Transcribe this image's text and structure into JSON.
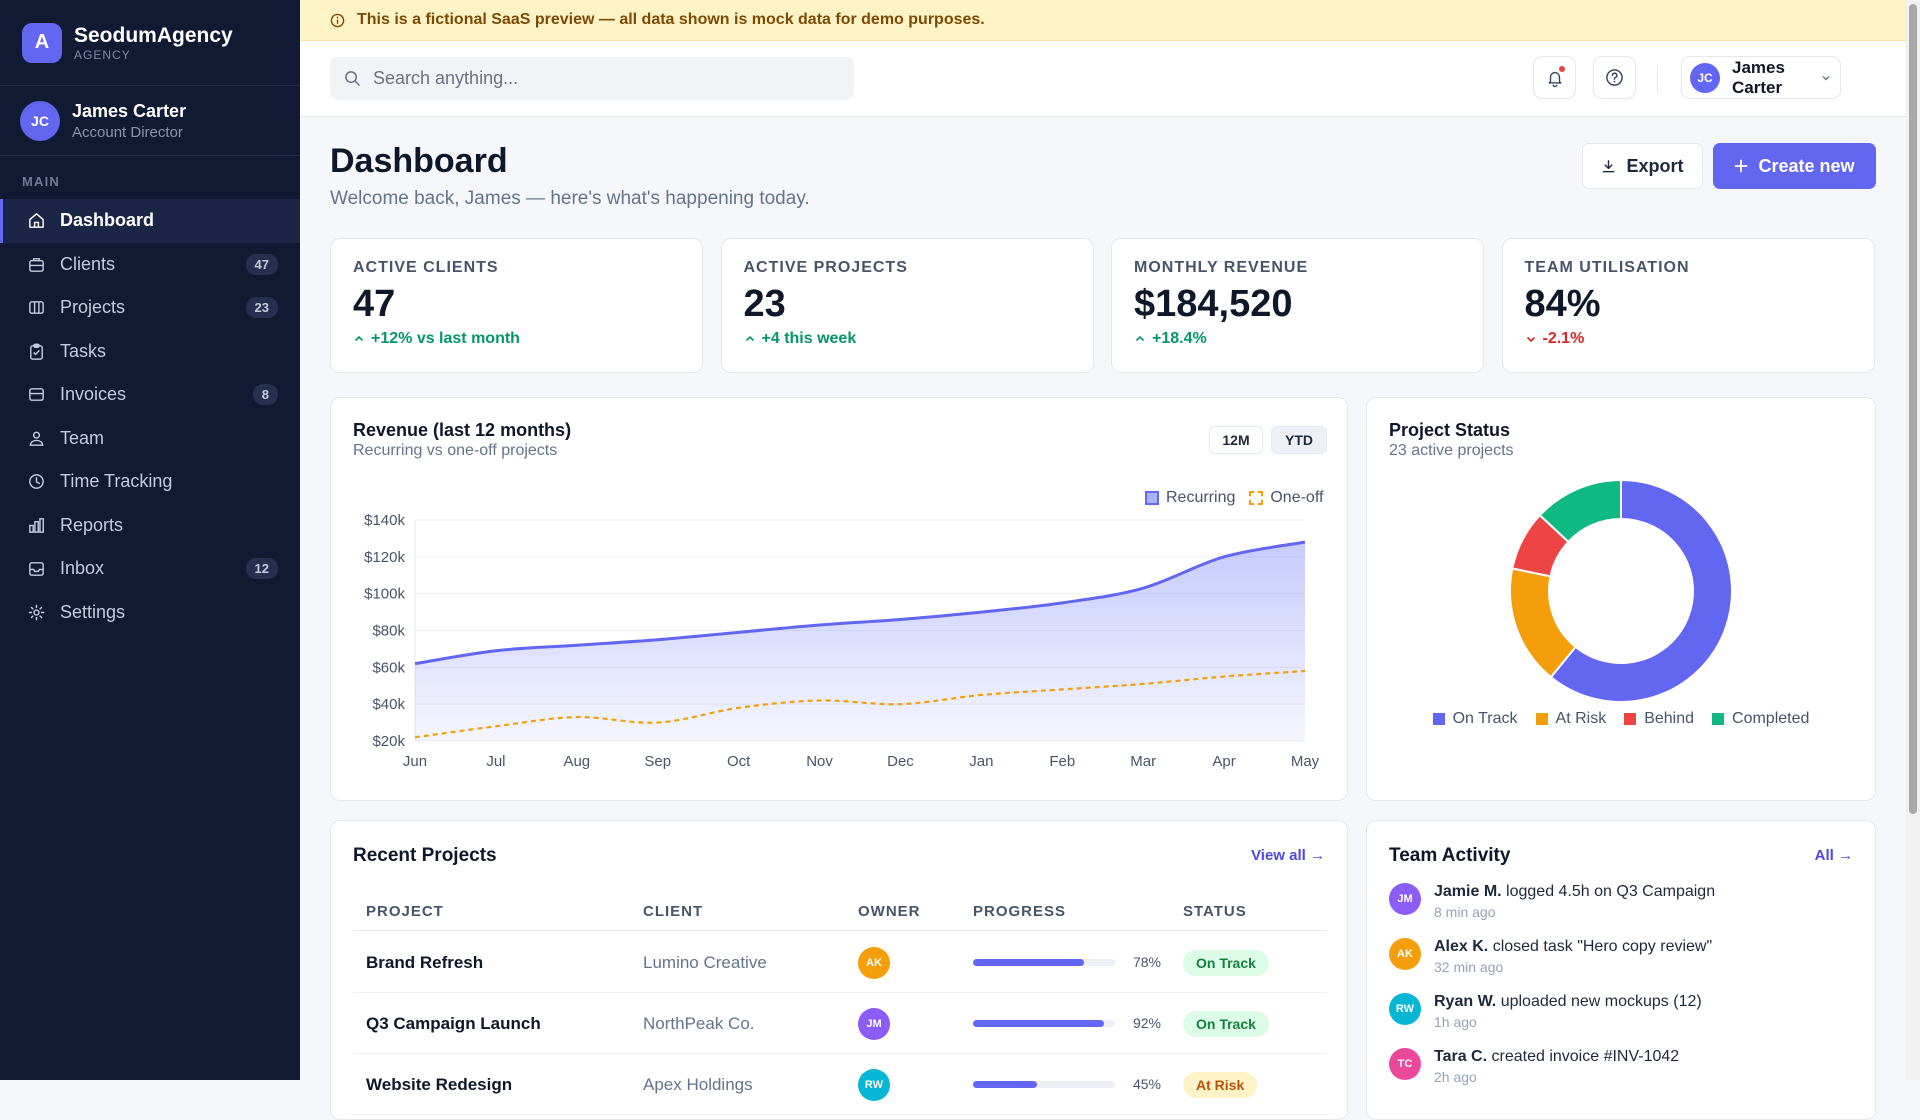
{
  "brand": {
    "logo_letter": "A",
    "name": "SeodumAgency",
    "sub": "AGENCY"
  },
  "user": {
    "initials": "JC",
    "name": "James Carter",
    "role": "Account Director"
  },
  "sidebar": {
    "section_label": "MAIN",
    "items": [
      {
        "label": "Dashboard",
        "icon": "home-icon",
        "badge": null,
        "active": true
      },
      {
        "label": "Clients",
        "icon": "briefcase-icon",
        "badge": "47"
      },
      {
        "label": "Projects",
        "icon": "columns-icon",
        "badge": "23"
      },
      {
        "label": "Tasks",
        "icon": "clipboard-icon",
        "badge": null
      },
      {
        "label": "Invoices",
        "icon": "invoice-icon",
        "badge": "8"
      },
      {
        "label": "Team",
        "icon": "users-icon",
        "badge": null
      },
      {
        "label": "Time Tracking",
        "icon": "clock-icon",
        "badge": null
      },
      {
        "label": "Reports",
        "icon": "bar-chart-icon",
        "badge": null
      },
      {
        "label": "Inbox",
        "icon": "inbox-icon",
        "badge": "12"
      },
      {
        "label": "Settings",
        "icon": "gear-icon",
        "badge": null
      }
    ]
  },
  "banner": {
    "text": "This is a fictional SaaS preview — all data shown is mock data for demo purposes."
  },
  "topbar": {
    "search_placeholder": "Search anything...",
    "profile_initials": "JC",
    "profile_name": "James Carter"
  },
  "header": {
    "title": "Dashboard",
    "subtitle": "Welcome back, James — here's what's happening today.",
    "export_label": "Export",
    "create_label": "Create new"
  },
  "kpis": [
    {
      "label": "ACTIVE CLIENTS",
      "value": "47",
      "delta": "+12% vs last month",
      "trend": "up"
    },
    {
      "label": "ACTIVE PROJECTS",
      "value": "23",
      "delta": "+4 this week",
      "trend": "up"
    },
    {
      "label": "MONTHLY REVENUE",
      "value": "$184,520",
      "delta": "+18.4%",
      "trend": "up"
    },
    {
      "label": "TEAM UTILISATION",
      "value": "84%",
      "delta": "-2.1%",
      "trend": "down"
    }
  ],
  "revenue_card": {
    "title": "Revenue (last 12 months)",
    "subtitle": "Recurring vs one-off projects",
    "range_12m": "12M",
    "range_ytd": "YTD"
  },
  "status_card": {
    "title": "Project Status",
    "subtitle": "23 active projects"
  },
  "chart_data": [
    {
      "type": "area",
      "categories": [
        "Jun",
        "Jul",
        "Aug",
        "Sep",
        "Oct",
        "Nov",
        "Dec",
        "Jan",
        "Feb",
        "Mar",
        "Apr",
        "May"
      ],
      "series": [
        {
          "name": "Recurring",
          "values": [
            62,
            69,
            72,
            75,
            79,
            83,
            86,
            90,
            95,
            103,
            120,
            128
          ],
          "color": "#6366f1",
          "style": "solid-filled"
        },
        {
          "name": "One-off",
          "values": [
            22,
            28,
            33,
            30,
            38,
            42,
            40,
            45,
            48,
            51,
            55,
            58
          ],
          "color": "#f59e0b",
          "style": "dashed"
        }
      ],
      "y_ticks": [
        "$20k",
        "$40k",
        "$60k",
        "$80k",
        "$100k",
        "$120k",
        "$140k"
      ],
      "ylim": [
        20,
        140
      ],
      "legend": "top-right",
      "grid": true
    },
    {
      "type": "pie",
      "donut": true,
      "categories": [
        "On Track",
        "At Risk",
        "Behind",
        "Completed"
      ],
      "values": [
        14,
        4,
        2,
        3
      ],
      "colors": [
        "#6366f1",
        "#f59e0b",
        "#ef4444",
        "#10b981"
      ],
      "legend": "bottom"
    }
  ],
  "projects": {
    "title": "Recent Projects",
    "view_all": "View all →",
    "headers": [
      "PROJECT",
      "CLIENT",
      "OWNER",
      "PROGRESS",
      "STATUS"
    ],
    "rows": [
      {
        "project": "Brand Refresh",
        "client": "Lumino Creative",
        "owner": "AK",
        "owner_color": "#f59e0b",
        "progress": 78,
        "progress_label": "78%",
        "status": "On Track",
        "status_tone": "green"
      },
      {
        "project": "Q3 Campaign Launch",
        "client": "NorthPeak Co.",
        "owner": "JM",
        "owner_color": "#8b5cf6",
        "progress": 92,
        "progress_label": "92%",
        "status": "On Track",
        "status_tone": "green"
      },
      {
        "project": "Website Redesign",
        "client": "Apex Holdings",
        "owner": "RW",
        "owner_color": "#06b6d4",
        "progress": 45,
        "progress_label": "45%",
        "status": "At Risk",
        "status_tone": "amber"
      }
    ]
  },
  "activity": {
    "title": "Team Activity",
    "all_link": "All →",
    "items": [
      {
        "initials": "JM",
        "color": "#8b5cf6",
        "name": "Jamie M.",
        "action": "logged 4.5h on Q3 Campaign",
        "time": "8 min ago"
      },
      {
        "initials": "AK",
        "color": "#f59e0b",
        "name": "Alex K.",
        "action": "closed task \"Hero copy review\"",
        "time": "32 min ago"
      },
      {
        "initials": "RW",
        "color": "#06b6d4",
        "name": "Ryan W.",
        "action": "uploaded new mockups (12)",
        "time": "1h ago"
      },
      {
        "initials": "TC",
        "color": "#ec4899",
        "name": "Tara C.",
        "action": "created invoice #INV-1042",
        "time": "2h ago"
      }
    ]
  }
}
